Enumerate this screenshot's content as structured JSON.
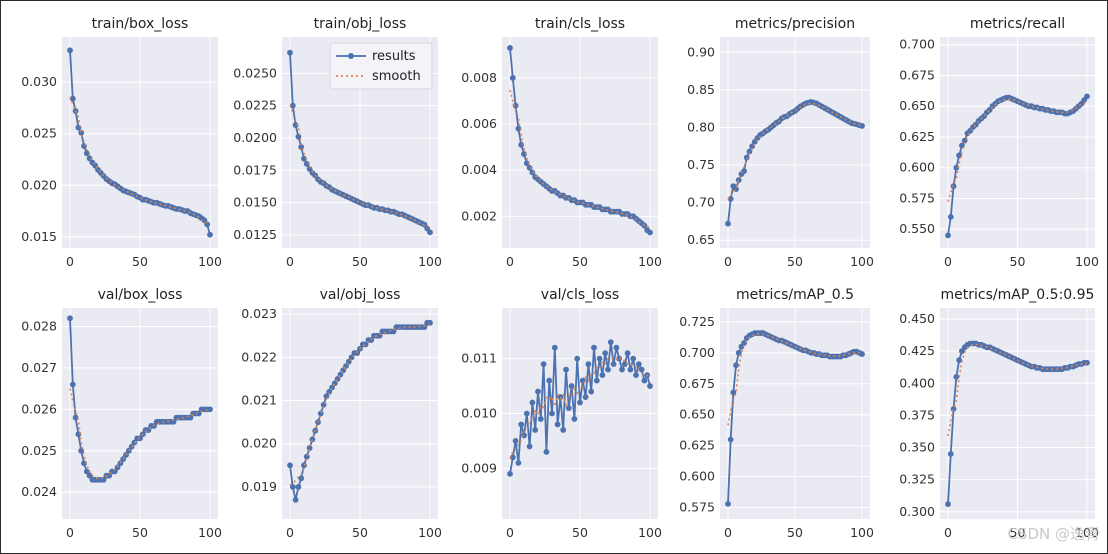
{
  "figure": {
    "legend": {
      "results_label": "results",
      "smooth_label": "smooth"
    },
    "watermark": "CSDN @逸青"
  },
  "colors": {
    "plot_bg": "#eaeaf2",
    "grid": "#ffffff",
    "results": "#4c72b0",
    "smooth": "#dd8452"
  },
  "chart_data": [
    {
      "type": "line",
      "title": "train/box_loss",
      "xlim": [
        0,
        100
      ],
      "xticks": [
        0,
        50,
        100
      ],
      "ylim": [
        0.0143,
        0.034
      ],
      "yticks": [
        0.015,
        0.02,
        0.025,
        0.03
      ],
      "yformat": 3,
      "x": [
        0,
        2,
        4,
        6,
        8,
        10,
        12,
        14,
        16,
        18,
        20,
        22,
        24,
        26,
        28,
        30,
        32,
        34,
        36,
        38,
        40,
        42,
        44,
        46,
        48,
        50,
        52,
        54,
        56,
        58,
        60,
        62,
        64,
        66,
        68,
        70,
        72,
        74,
        76,
        78,
        80,
        82,
        84,
        86,
        88,
        90,
        92,
        94,
        96,
        98,
        100
      ],
      "results": [
        0.0331,
        0.0284,
        0.0272,
        0.0256,
        0.0251,
        0.0238,
        0.0231,
        0.0226,
        0.0222,
        0.0219,
        0.0215,
        0.0212,
        0.0209,
        0.0206,
        0.0204,
        0.0202,
        0.0201,
        0.0199,
        0.0197,
        0.0195,
        0.0194,
        0.0193,
        0.0192,
        0.0191,
        0.0189,
        0.0188,
        0.0186,
        0.0186,
        0.0185,
        0.0184,
        0.0183,
        0.0183,
        0.0182,
        0.0181,
        0.018,
        0.018,
        0.0179,
        0.0178,
        0.0177,
        0.0177,
        0.0176,
        0.0175,
        0.0175,
        0.0173,
        0.0172,
        0.0171,
        0.017,
        0.0168,
        0.0166,
        0.0162,
        0.0152
      ]
    },
    {
      "type": "line",
      "title": "train/obj_loss",
      "xlim": [
        0,
        100
      ],
      "xticks": [
        0,
        50,
        100
      ],
      "ylim": [
        0.0118,
        0.0275
      ],
      "yticks": [
        0.0125,
        0.015,
        0.0175,
        0.02,
        0.0225,
        0.025
      ],
      "yformat": 4,
      "legend": true,
      "x": [
        0,
        2,
        4,
        6,
        8,
        10,
        12,
        14,
        16,
        18,
        20,
        22,
        24,
        26,
        28,
        30,
        32,
        34,
        36,
        38,
        40,
        42,
        44,
        46,
        48,
        50,
        52,
        54,
        56,
        58,
        60,
        62,
        64,
        66,
        68,
        70,
        72,
        74,
        76,
        78,
        80,
        82,
        84,
        86,
        88,
        90,
        92,
        94,
        96,
        98,
        100
      ],
      "results": [
        0.0266,
        0.0225,
        0.021,
        0.0201,
        0.0193,
        0.0184,
        0.018,
        0.0176,
        0.0173,
        0.0171,
        0.0168,
        0.0166,
        0.0165,
        0.0163,
        0.0162,
        0.016,
        0.0159,
        0.0158,
        0.0157,
        0.0156,
        0.0155,
        0.0154,
        0.0153,
        0.0152,
        0.0151,
        0.015,
        0.0149,
        0.0148,
        0.0148,
        0.0147,
        0.0146,
        0.0146,
        0.0145,
        0.0145,
        0.0144,
        0.0144,
        0.0143,
        0.0143,
        0.0142,
        0.0141,
        0.0141,
        0.014,
        0.0139,
        0.0138,
        0.0137,
        0.0136,
        0.0135,
        0.0134,
        0.0133,
        0.013,
        0.0127
      ]
    },
    {
      "type": "line",
      "title": "train/cls_loss",
      "xlim": [
        0,
        100
      ],
      "xticks": [
        0,
        50,
        100
      ],
      "ylim": [
        0.0008,
        0.0096
      ],
      "yticks": [
        0.002,
        0.004,
        0.006,
        0.008
      ],
      "yformat": 3,
      "x": [
        0,
        2,
        4,
        6,
        8,
        10,
        12,
        14,
        16,
        18,
        20,
        22,
        24,
        26,
        28,
        30,
        32,
        34,
        36,
        38,
        40,
        42,
        44,
        46,
        48,
        50,
        52,
        54,
        56,
        58,
        60,
        62,
        64,
        66,
        68,
        70,
        72,
        74,
        76,
        78,
        80,
        82,
        84,
        86,
        88,
        90,
        92,
        94,
        96,
        98,
        100
      ],
      "results": [
        0.0093,
        0.008,
        0.0068,
        0.0058,
        0.0051,
        0.0047,
        0.0043,
        0.0041,
        0.0039,
        0.0037,
        0.0036,
        0.0035,
        0.0034,
        0.0033,
        0.0032,
        0.0031,
        0.0031,
        0.003,
        0.0029,
        0.0029,
        0.0028,
        0.0028,
        0.0027,
        0.0027,
        0.0026,
        0.0026,
        0.0026,
        0.0025,
        0.0025,
        0.0025,
        0.0024,
        0.0024,
        0.0024,
        0.0023,
        0.0023,
        0.0023,
        0.0022,
        0.0022,
        0.0022,
        0.0022,
        0.0021,
        0.0021,
        0.0021,
        0.002,
        0.002,
        0.0019,
        0.0018,
        0.0017,
        0.0016,
        0.0014,
        0.0013
      ]
    },
    {
      "type": "line",
      "title": "metrics/precision",
      "xlim": [
        0,
        100
      ],
      "xticks": [
        0,
        50,
        100
      ],
      "ylim": [
        0.645,
        0.915
      ],
      "yticks": [
        0.65,
        0.7,
        0.75,
        0.8,
        0.85,
        0.9
      ],
      "yformat": 2,
      "x": [
        0,
        2,
        4,
        6,
        8,
        10,
        12,
        14,
        16,
        18,
        20,
        22,
        24,
        26,
        28,
        30,
        32,
        34,
        36,
        38,
        40,
        42,
        44,
        46,
        48,
        50,
        52,
        54,
        56,
        58,
        60,
        62,
        64,
        66,
        68,
        70,
        72,
        74,
        76,
        78,
        80,
        82,
        84,
        86,
        88,
        90,
        92,
        94,
        96,
        98,
        100
      ],
      "results": [
        0.672,
        0.705,
        0.722,
        0.718,
        0.73,
        0.738,
        0.742,
        0.76,
        0.768,
        0.775,
        0.781,
        0.786,
        0.79,
        0.792,
        0.795,
        0.797,
        0.8,
        0.803,
        0.806,
        0.808,
        0.812,
        0.814,
        0.815,
        0.818,
        0.82,
        0.822,
        0.825,
        0.828,
        0.83,
        0.832,
        0.833,
        0.834,
        0.833,
        0.832,
        0.83,
        0.828,
        0.826,
        0.824,
        0.822,
        0.82,
        0.818,
        0.816,
        0.814,
        0.812,
        0.81,
        0.808,
        0.806,
        0.805,
        0.804,
        0.803,
        0.802
      ]
    },
    {
      "type": "line",
      "title": "metrics/recall",
      "xlim": [
        0,
        100
      ],
      "xticks": [
        0,
        50,
        100
      ],
      "ylim": [
        0.538,
        0.703
      ],
      "yticks": [
        0.55,
        0.575,
        0.6,
        0.625,
        0.65,
        0.675,
        0.7
      ],
      "yformat": 3,
      "x": [
        0,
        2,
        4,
        6,
        8,
        10,
        12,
        14,
        16,
        18,
        20,
        22,
        24,
        26,
        28,
        30,
        32,
        34,
        36,
        38,
        40,
        42,
        44,
        46,
        48,
        50,
        52,
        54,
        56,
        58,
        60,
        62,
        64,
        66,
        68,
        70,
        72,
        74,
        76,
        78,
        80,
        82,
        84,
        86,
        88,
        90,
        92,
        94,
        96,
        98,
        100
      ],
      "results": [
        0.545,
        0.56,
        0.585,
        0.6,
        0.61,
        0.618,
        0.622,
        0.628,
        0.63,
        0.633,
        0.635,
        0.638,
        0.64,
        0.642,
        0.645,
        0.647,
        0.65,
        0.652,
        0.654,
        0.655,
        0.656,
        0.657,
        0.657,
        0.656,
        0.655,
        0.654,
        0.653,
        0.652,
        0.651,
        0.65,
        0.65,
        0.649,
        0.649,
        0.648,
        0.648,
        0.647,
        0.647,
        0.646,
        0.646,
        0.645,
        0.645,
        0.645,
        0.644,
        0.644,
        0.645,
        0.646,
        0.648,
        0.65,
        0.652,
        0.655,
        0.658
      ]
    },
    {
      "type": "line",
      "title": "val/box_loss",
      "xlim": [
        0,
        100
      ],
      "xticks": [
        0,
        50,
        100
      ],
      "ylim": [
        0.02345,
        0.02835
      ],
      "yticks": [
        0.024,
        0.025,
        0.026,
        0.027,
        0.028
      ],
      "yformat": 3,
      "x": [
        0,
        2,
        4,
        6,
        8,
        10,
        12,
        14,
        16,
        18,
        20,
        22,
        24,
        26,
        28,
        30,
        32,
        34,
        36,
        38,
        40,
        42,
        44,
        46,
        48,
        50,
        52,
        54,
        56,
        58,
        60,
        62,
        64,
        66,
        68,
        70,
        72,
        74,
        76,
        78,
        80,
        82,
        84,
        86,
        88,
        90,
        92,
        94,
        96,
        98,
        100
      ],
      "results": [
        0.0282,
        0.0266,
        0.0258,
        0.0254,
        0.025,
        0.0247,
        0.0245,
        0.0244,
        0.0243,
        0.0243,
        0.0243,
        0.0243,
        0.0243,
        0.0244,
        0.0244,
        0.0245,
        0.0245,
        0.0246,
        0.0247,
        0.0248,
        0.0249,
        0.025,
        0.0251,
        0.0252,
        0.0253,
        0.0253,
        0.0254,
        0.0255,
        0.0255,
        0.0256,
        0.0256,
        0.0257,
        0.0257,
        0.0257,
        0.0257,
        0.0257,
        0.0257,
        0.0257,
        0.0258,
        0.0258,
        0.0258,
        0.0258,
        0.0258,
        0.0258,
        0.0259,
        0.0259,
        0.0259,
        0.026,
        0.026,
        0.026,
        0.026
      ]
    },
    {
      "type": "line",
      "title": "val/obj_loss",
      "xlim": [
        0,
        100
      ],
      "xticks": [
        0,
        50,
        100
      ],
      "ylim": [
        0.01835,
        0.02305
      ],
      "yticks": [
        0.019,
        0.02,
        0.021,
        0.022,
        0.023
      ],
      "yformat": 3,
      "x": [
        0,
        2,
        4,
        6,
        8,
        10,
        12,
        14,
        16,
        18,
        20,
        22,
        24,
        26,
        28,
        30,
        32,
        34,
        36,
        38,
        40,
        42,
        44,
        46,
        48,
        50,
        52,
        54,
        56,
        58,
        60,
        62,
        64,
        66,
        68,
        70,
        72,
        74,
        76,
        78,
        80,
        82,
        84,
        86,
        88,
        90,
        92,
        94,
        96,
        98,
        100
      ],
      "results": [
        0.0195,
        0.019,
        0.0187,
        0.019,
        0.0192,
        0.0195,
        0.0197,
        0.0199,
        0.0201,
        0.0203,
        0.0205,
        0.0207,
        0.0209,
        0.0211,
        0.0212,
        0.0213,
        0.0214,
        0.0215,
        0.0216,
        0.0217,
        0.0218,
        0.0219,
        0.022,
        0.0221,
        0.0221,
        0.0222,
        0.0223,
        0.0223,
        0.0224,
        0.0224,
        0.0225,
        0.0225,
        0.0225,
        0.0226,
        0.0226,
        0.0226,
        0.0226,
        0.0226,
        0.0227,
        0.0227,
        0.0227,
        0.0227,
        0.0227,
        0.0227,
        0.0227,
        0.0227,
        0.0227,
        0.0227,
        0.0227,
        0.0228,
        0.0228
      ]
    },
    {
      "type": "line",
      "title": "val/cls_loss",
      "xlim": [
        0,
        100
      ],
      "xticks": [
        0,
        50,
        100
      ],
      "ylim": [
        0.00815,
        0.01185
      ],
      "yticks": [
        0.009,
        0.01,
        0.011
      ],
      "yformat": 3,
      "x": [
        0,
        2,
        4,
        6,
        8,
        10,
        12,
        14,
        16,
        18,
        20,
        22,
        24,
        26,
        28,
        30,
        32,
        34,
        36,
        38,
        40,
        42,
        44,
        46,
        48,
        50,
        52,
        54,
        56,
        58,
        60,
        62,
        64,
        66,
        68,
        70,
        72,
        74,
        76,
        78,
        80,
        82,
        84,
        86,
        88,
        90,
        92,
        94,
        96,
        98,
        100
      ],
      "results": [
        0.0089,
        0.0092,
        0.0095,
        0.0091,
        0.0098,
        0.0096,
        0.01,
        0.0094,
        0.0102,
        0.0097,
        0.0104,
        0.0099,
        0.0109,
        0.0093,
        0.0106,
        0.01,
        0.0112,
        0.0098,
        0.0103,
        0.0097,
        0.0108,
        0.0101,
        0.0105,
        0.0099,
        0.011,
        0.0102,
        0.0106,
        0.0103,
        0.0109,
        0.0104,
        0.0112,
        0.0106,
        0.011,
        0.0107,
        0.0111,
        0.0108,
        0.0113,
        0.0109,
        0.0112,
        0.011,
        0.0108,
        0.0109,
        0.0111,
        0.0108,
        0.011,
        0.0107,
        0.0109,
        0.0108,
        0.0106,
        0.0107,
        0.0105
      ]
    },
    {
      "type": "line",
      "title": "metrics/mAP_0.5",
      "xlim": [
        0,
        100
      ],
      "xticks": [
        0,
        50,
        100
      ],
      "ylim": [
        0.569,
        0.733
      ],
      "yticks": [
        0.575,
        0.6,
        0.625,
        0.65,
        0.675,
        0.7,
        0.725
      ],
      "yformat": 3,
      "x": [
        0,
        2,
        4,
        6,
        8,
        10,
        12,
        14,
        16,
        18,
        20,
        22,
        24,
        26,
        28,
        30,
        32,
        34,
        36,
        38,
        40,
        42,
        44,
        46,
        48,
        50,
        52,
        54,
        56,
        58,
        60,
        62,
        64,
        66,
        68,
        70,
        72,
        74,
        76,
        78,
        80,
        82,
        84,
        86,
        88,
        90,
        92,
        94,
        96,
        98,
        100
      ],
      "results": [
        0.578,
        0.63,
        0.668,
        0.69,
        0.7,
        0.705,
        0.708,
        0.712,
        0.714,
        0.715,
        0.716,
        0.716,
        0.716,
        0.716,
        0.715,
        0.714,
        0.713,
        0.712,
        0.711,
        0.71,
        0.71,
        0.709,
        0.708,
        0.707,
        0.706,
        0.705,
        0.704,
        0.703,
        0.702,
        0.702,
        0.701,
        0.7,
        0.7,
        0.699,
        0.699,
        0.698,
        0.698,
        0.698,
        0.697,
        0.697,
        0.697,
        0.697,
        0.697,
        0.698,
        0.698,
        0.699,
        0.7,
        0.701,
        0.701,
        0.7,
        0.699
      ]
    },
    {
      "type": "line",
      "title": "metrics/mAP_0.5:0.95",
      "xlim": [
        0,
        100
      ],
      "xticks": [
        0,
        50,
        100
      ],
      "ylim": [
        0.2975,
        0.4555
      ],
      "yticks": [
        0.3,
        0.325,
        0.35,
        0.375,
        0.4,
        0.425,
        0.45
      ],
      "yformat": 3,
      "x": [
        0,
        2,
        4,
        6,
        8,
        10,
        12,
        14,
        16,
        18,
        20,
        22,
        24,
        26,
        28,
        30,
        32,
        34,
        36,
        38,
        40,
        42,
        44,
        46,
        48,
        50,
        52,
        54,
        56,
        58,
        60,
        62,
        64,
        66,
        68,
        70,
        72,
        74,
        76,
        78,
        80,
        82,
        84,
        86,
        88,
        90,
        92,
        94,
        96,
        98,
        100
      ],
      "results": [
        0.306,
        0.345,
        0.38,
        0.405,
        0.418,
        0.425,
        0.428,
        0.43,
        0.431,
        0.431,
        0.431,
        0.43,
        0.43,
        0.429,
        0.428,
        0.428,
        0.427,
        0.426,
        0.425,
        0.424,
        0.423,
        0.422,
        0.421,
        0.42,
        0.419,
        0.418,
        0.417,
        0.416,
        0.415,
        0.414,
        0.413,
        0.413,
        0.412,
        0.412,
        0.411,
        0.411,
        0.411,
        0.411,
        0.411,
        0.411,
        0.411,
        0.411,
        0.412,
        0.412,
        0.413,
        0.413,
        0.414,
        0.415,
        0.415,
        0.416,
        0.416
      ]
    }
  ]
}
